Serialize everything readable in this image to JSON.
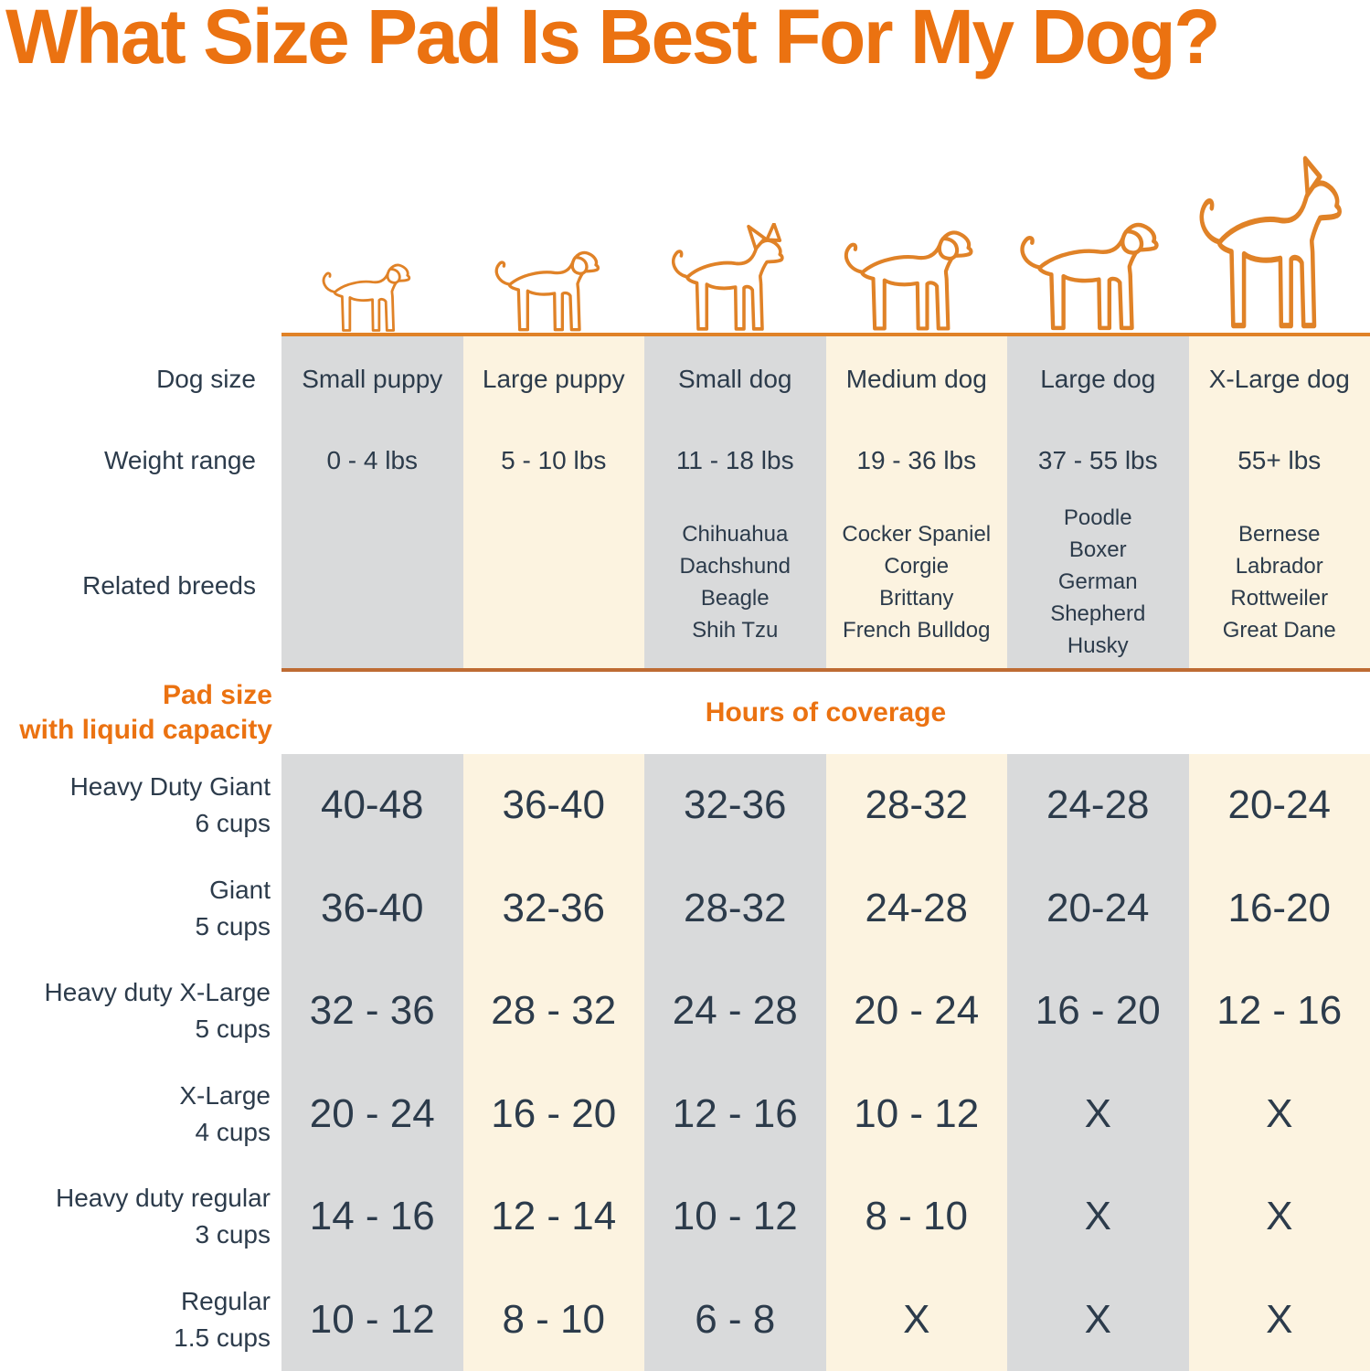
{
  "title": "What Size Pad Is Best For My Dog?",
  "labels": {
    "dog_size": "Dog size",
    "weight_range": "Weight range",
    "related_breeds": "Related breeds",
    "pad_size": "Pad size\nwith liquid capacity",
    "hours": "Hours of coverage"
  },
  "colors": {
    "accent_orange": "#EB7211",
    "dog_outline": "#E08227",
    "divider_line": "#BE6B33",
    "column_gray": "#D9DADB",
    "column_cream": "#FCF3E0",
    "text_dark": "#2C3B4B",
    "background": "#FFFFFF"
  },
  "chart_data": {
    "type": "table",
    "title": "What Size Pad Is Best For My Dog?",
    "section_header": "Hours of coverage",
    "row_group_header": "Pad size with liquid capacity",
    "columns": [
      {
        "name": "Small puppy",
        "weight": "0 - 4 lbs",
        "breeds": [],
        "icon": "small-puppy-icon",
        "ear_style": "floppy",
        "tint": "gray"
      },
      {
        "name": "Large puppy",
        "weight": "5 - 10 lbs",
        "breeds": [],
        "icon": "large-puppy-icon",
        "ear_style": "floppy",
        "tint": "cream"
      },
      {
        "name": "Small dog",
        "weight": "11 - 18 lbs",
        "breeds": [
          "Chihuahua",
          "Dachshund",
          "Beagle",
          "Shih Tzu"
        ],
        "icon": "small-dog-icon",
        "ear_style": "perk",
        "tint": "gray"
      },
      {
        "name": "Medium dog",
        "weight": "19 - 36 lbs",
        "breeds": [
          "Cocker Spaniel",
          "Corgie",
          "Brittany",
          "French Bulldog"
        ],
        "icon": "medium-dog-icon",
        "ear_style": "floppy",
        "tint": "cream"
      },
      {
        "name": "Large dog",
        "weight": "37 - 55 lbs",
        "breeds": [
          "Poodle",
          "Boxer",
          "German Shepherd",
          "Husky"
        ],
        "icon": "large-dog-icon",
        "ear_style": "floppy",
        "tint": "gray"
      },
      {
        "name": "X-Large dog",
        "weight": "55+ lbs",
        "breeds": [
          "Bernese",
          "Labrador",
          "Rottweiler",
          "Great Dane"
        ],
        "icon": "x-large-dog-icon",
        "ear_style": "cropped",
        "tint": "cream"
      }
    ],
    "rows": [
      {
        "pad": "Heavy Duty Giant",
        "capacity": "6 cups",
        "hours": [
          "40-48",
          "36-40",
          "32-36",
          "28-32",
          "24-28",
          "20-24"
        ]
      },
      {
        "pad": "Giant",
        "capacity": "5 cups",
        "hours": [
          "36-40",
          "32-36",
          "28-32",
          "24-28",
          "20-24",
          "16-20"
        ]
      },
      {
        "pad": "Heavy duty X-Large",
        "capacity": "5 cups",
        "hours": [
          "32 - 36",
          "28 - 32",
          "24 - 28",
          "20 - 24",
          "16 - 20",
          "12 - 16"
        ]
      },
      {
        "pad": "X-Large",
        "capacity": "4 cups",
        "hours": [
          "20 - 24",
          "16 - 20",
          "12 - 16",
          "10 - 12",
          "X",
          "X"
        ]
      },
      {
        "pad": "Heavy duty regular",
        "capacity": "3 cups",
        "hours": [
          "14 - 16",
          "12 - 14",
          "10 - 12",
          "8 - 10",
          "X",
          "X"
        ]
      },
      {
        "pad": "Regular",
        "capacity": "1.5 cups",
        "hours": [
          "10 - 12",
          "8 - 10",
          "6 - 8",
          "X",
          "X",
          "X"
        ]
      }
    ]
  }
}
